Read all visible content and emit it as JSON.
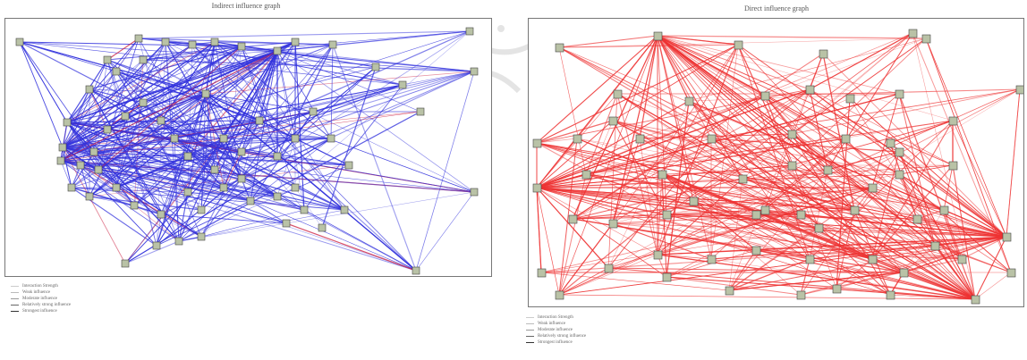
{
  "figure": {
    "left_title": "Indirect influence graph",
    "right_title": "Direct influence graph",
    "left_edge_color": "#3333dd",
    "left_accent_color": "#cc2244",
    "right_edge_color": "#ee3333",
    "node_color": "#b9c2a6",
    "left_legend": [
      "Interaction Strength",
      "Weak influence",
      "Moderate influence",
      "Relatively strong influence",
      "Strongest influence"
    ],
    "right_legend": [
      "Interaction Strength",
      "Weak influence",
      "Moderate influence",
      "Relatively strong influence",
      "Strongest influence"
    ]
  }
}
